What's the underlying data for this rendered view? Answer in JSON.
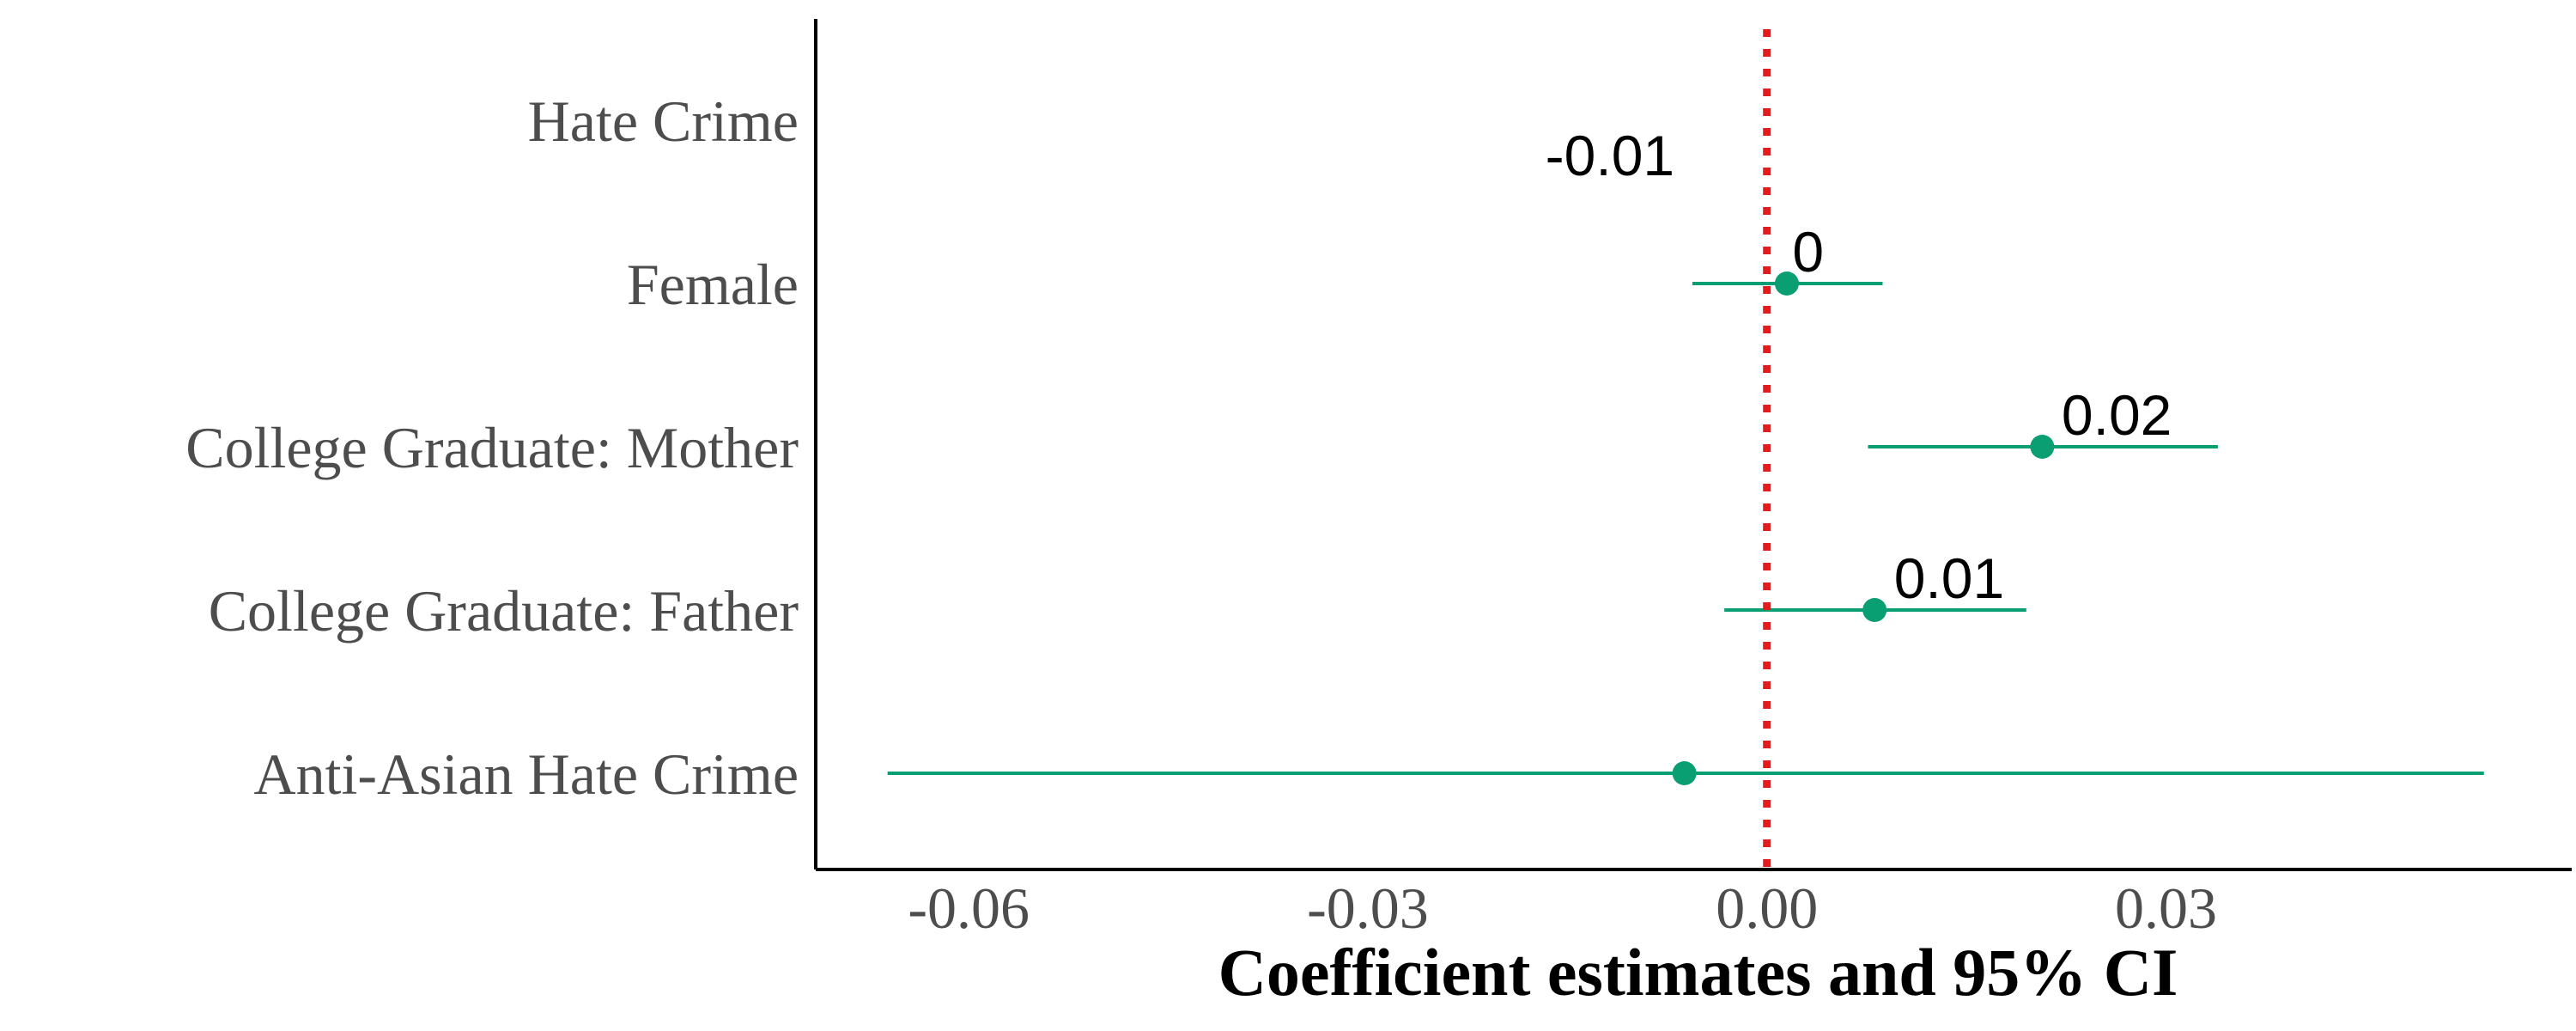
{
  "colors": {
    "point": "#0a9e73",
    "reference_line": "#e41a1c",
    "axis": "#000000"
  },
  "chart_data": {
    "type": "scatter",
    "subtype": "coefficient-plot",
    "title": "",
    "xlabel": "Coefficient estimates and 95% CI",
    "ylabel": "",
    "xlim": [
      -0.0715,
      0.0605
    ],
    "x_ticks": [
      -0.06,
      -0.03,
      0.0,
      0.03
    ],
    "x_tick_labels": [
      "-0.06",
      "-0.03",
      "0.00",
      "0.03"
    ],
    "reference_line": 0,
    "grid": false,
    "legend": "none",
    "categories": [
      "Hate Crime",
      "Female",
      "College Graduate: Mother",
      "College Graduate: Father",
      "Anti-Asian Hate Crime"
    ],
    "estimates": [
      null,
      0.0015,
      0.0207,
      0.0081,
      -0.0062
    ],
    "ci_low": [
      null,
      -0.0056,
      0.0076,
      -0.0032,
      -0.0661
    ],
    "ci_high": [
      null,
      0.0087,
      0.0339,
      0.0195,
      0.0539
    ],
    "value_labels": [
      "-0.01",
      "0",
      "0.02",
      "0.01",
      ""
    ],
    "value_label_x": [
      -0.0118,
      0.0031,
      0.0263,
      0.0137,
      null
    ]
  }
}
